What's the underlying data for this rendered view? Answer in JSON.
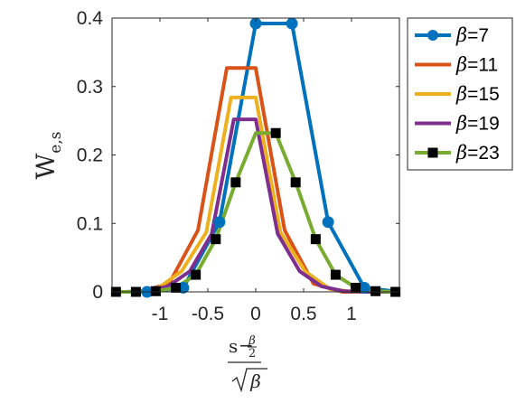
{
  "chart_data": {
    "type": "line",
    "xlabel": {
      "num_main": "s",
      "num_minus": "−",
      "num_frac_top": "β",
      "num_frac_bottom": "2",
      "den": "β"
    },
    "ylabel": {
      "main": "W",
      "sub": "e,s"
    },
    "xlim": [
      -1.5,
      1.5
    ],
    "ylim": [
      0,
      0.4
    ],
    "xticks": [
      -1,
      -0.5,
      0,
      0.5,
      1
    ],
    "xtick_labels": [
      "-1",
      "-0.5",
      "0",
      "0.5",
      "1"
    ],
    "yticks": [
      0,
      0.1,
      0.2,
      0.3,
      0.4
    ],
    "ytick_labels": [
      "0",
      "0.1",
      "0.2",
      "0.3",
      "0.4"
    ],
    "grid": false,
    "legend_position": "outside-right",
    "series": [
      {
        "name": "β=7",
        "legend_var": "β",
        "legend_val": "=7",
        "color": "#0072BD",
        "marker": "circle",
        "x": [
          -1.512,
          -1.134,
          -0.756,
          -0.378,
          0,
          0.378,
          0.756,
          1.134,
          1.512
        ],
        "y": [
          0.0,
          0.0,
          0.006,
          0.102,
          0.392,
          0.392,
          0.102,
          0.006,
          0.0
        ],
        "marker_x": [
          -1.134,
          -0.756,
          -0.378,
          0.0,
          0.378,
          0.756,
          1.134,
          1.512
        ],
        "marker_y": [
          0.0,
          0.006,
          0.102,
          0.392,
          0.392,
          0.102,
          0.006,
          0.0
        ]
      },
      {
        "name": "β=11",
        "legend_var": "β",
        "legend_val": "=11",
        "color": "#D95319",
        "marker": "none",
        "x": [
          -1.508,
          -1.206,
          -0.905,
          -0.603,
          -0.302,
          0,
          0.302,
          0.603,
          0.905,
          1.206,
          1.508
        ],
        "y": [
          0.0,
          0.0,
          0.012,
          0.09,
          0.327,
          0.327,
          0.09,
          0.012,
          0.0,
          0.0,
          0.0
        ]
      },
      {
        "name": "β=15",
        "legend_var": "β",
        "legend_val": "=15",
        "color": "#EDB120",
        "marker": "none",
        "x": [
          -1.549,
          -1.291,
          -1.033,
          -0.775,
          -0.516,
          -0.258,
          0,
          0.258,
          0.516,
          0.775,
          1.033,
          1.291,
          1.549
        ],
        "y": [
          0.0,
          0.0,
          0.004,
          0.03,
          0.087,
          0.284,
          0.284,
          0.087,
          0.03,
          0.004,
          0.0,
          0.0,
          0.0
        ]
      },
      {
        "name": "β=19",
        "legend_var": "β",
        "legend_val": "=19",
        "color": "#7E2F8E",
        "marker": "none",
        "x": [
          -1.606,
          -1.376,
          -1.147,
          -0.918,
          -0.688,
          -0.459,
          -0.229,
          0,
          0.229,
          0.459,
          0.688,
          0.918,
          1.147,
          1.376,
          1.606
        ],
        "y": [
          0.0,
          0.0,
          0.001,
          0.008,
          0.03,
          0.085,
          0.252,
          0.252,
          0.085,
          0.03,
          0.008,
          0.001,
          0.0,
          0.0,
          0.0
        ]
      },
      {
        "name": "β=23",
        "legend_var": "β",
        "legend_val": "=23",
        "color": "#77AC30",
        "marker": "square",
        "marker_color": "#000000",
        "x": [
          -1.459,
          -1.251,
          -1.043,
          -0.834,
          -0.626,
          -0.417,
          -0.209,
          0,
          0.209,
          0.417,
          0.626,
          0.834,
          1.043,
          1.251,
          1.459
        ],
        "y": [
          0.0,
          0.0,
          0.001,
          0.006,
          0.025,
          0.077,
          0.16,
          0.232,
          0.232,
          0.16,
          0.077,
          0.025,
          0.006,
          0.001,
          0.0
        ],
        "marker_x": [
          -1.459,
          -1.251,
          -1.043,
          -0.834,
          -0.626,
          -0.417,
          -0.209,
          0.209,
          0.417,
          0.626,
          0.834,
          1.043,
          1.251,
          1.459
        ],
        "marker_y": [
          0.0,
          0.0,
          0.001,
          0.006,
          0.025,
          0.077,
          0.16,
          0.232,
          0.16,
          0.077,
          0.025,
          0.006,
          0.001,
          0.0
        ]
      }
    ]
  }
}
